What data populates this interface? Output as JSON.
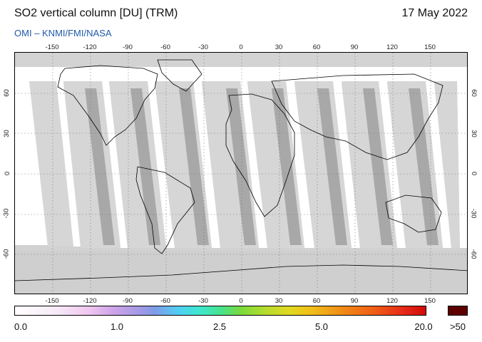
{
  "header": {
    "title": "SO2 vertical column [DU] (TRM)",
    "date": "17 May 2022",
    "credit": "OMI  –  KNMI/FMI/NASA"
  },
  "map": {
    "projection": "equirectangular",
    "lon_range": [
      -180,
      180
    ],
    "lat_range": [
      -90,
      90
    ],
    "lon_ticks": [
      "-150",
      "-120",
      "-90",
      "-60",
      "-30",
      "0",
      "30",
      "60",
      "90",
      "120",
      "150"
    ],
    "lat_ticks": [
      "60",
      "30",
      "0",
      "-30",
      "-60"
    ],
    "background_gray": "#d2d2d2",
    "swath_light_gray": "#d7d7d7",
    "swath_dark_gray": "#a9a9a9",
    "no_data_white": "#ffffff"
  },
  "colorbar": {
    "labels": [
      "0.0",
      "1.0",
      "2.5",
      "5.0",
      "20.0"
    ],
    "over_label": ">50",
    "over_color": "#5d0000"
  }
}
